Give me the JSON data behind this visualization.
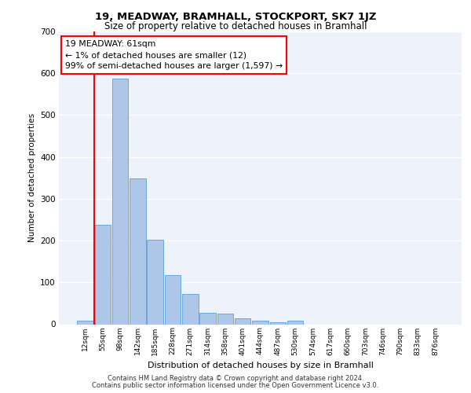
{
  "title": "19, MEADWAY, BRAMHALL, STOCKPORT, SK7 1JZ",
  "subtitle": "Size of property relative to detached houses in Bramhall",
  "xlabel": "Distribution of detached houses by size in Bramhall",
  "ylabel": "Number of detached properties",
  "categories": [
    "12sqm",
    "55sqm",
    "98sqm",
    "142sqm",
    "185sqm",
    "228sqm",
    "271sqm",
    "314sqm",
    "358sqm",
    "401sqm",
    "444sqm",
    "487sqm",
    "530sqm",
    "574sqm",
    "617sqm",
    "660sqm",
    "703sqm",
    "746sqm",
    "790sqm",
    "833sqm",
    "876sqm"
  ],
  "values": [
    8,
    238,
    587,
    349,
    202,
    118,
    72,
    27,
    26,
    15,
    8,
    5,
    8,
    0,
    0,
    0,
    0,
    0,
    0,
    0,
    0
  ],
  "bar_color": "#aec6e8",
  "bar_edge_color": "#5a9fd4",
  "property_label": "19 MEADWAY: 61sqm",
  "annotation_line1": "← 1% of detached houses are smaller (12)",
  "annotation_line2": "99% of semi-detached houses are larger (1,597) →",
  "ylim": [
    0,
    700
  ],
  "yticks": [
    0,
    100,
    200,
    300,
    400,
    500,
    600,
    700
  ],
  "background_color": "#eef2fa",
  "grid_color": "#ffffff",
  "footer_line1": "Contains HM Land Registry data © Crown copyright and database right 2024.",
  "footer_line2": "Contains public sector information licensed under the Open Government Licence v3.0."
}
